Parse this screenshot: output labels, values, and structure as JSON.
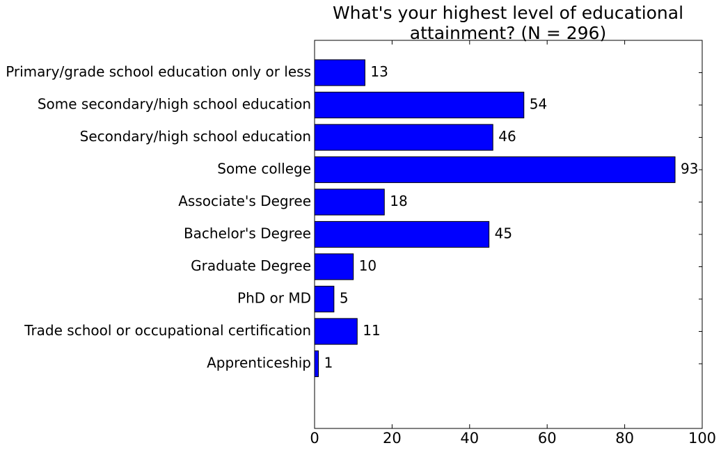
{
  "chart_data": {
    "type": "barh",
    "title": "What's your highest level of educational attainment? (N = 296)",
    "categories": [
      "Primary/grade school education only or less",
      "Some secondary/high school education",
      "Secondary/high school education",
      "Some college",
      "Associate's Degree",
      "Bachelor's Degree",
      "Graduate Degree",
      "PhD or MD",
      "Trade school or occupational certification",
      "Apprenticeship"
    ],
    "values": [
      13,
      54,
      46,
      93,
      18,
      45,
      10,
      5,
      11,
      1
    ],
    "color": "#0000ff",
    "xlim": [
      0,
      100
    ],
    "xticks": [
      0,
      20,
      40,
      60,
      80,
      100
    ]
  }
}
